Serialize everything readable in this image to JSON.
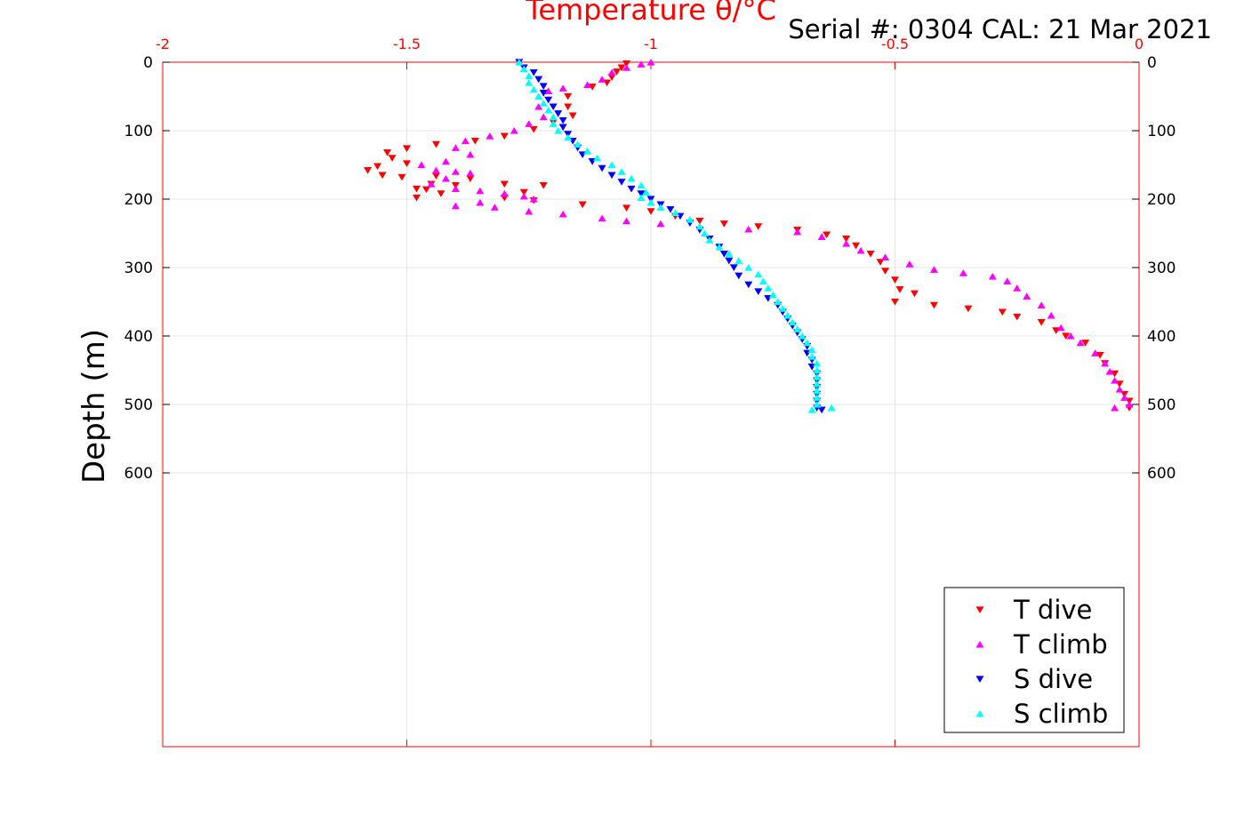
{
  "chart_data": {
    "type": "scatter",
    "title": "Temperature θ/°C",
    "subtitle": "Serial #: 0304  CAL: 21 Mar 2021",
    "xlabel": "Temperature θ/°C",
    "ylabel": "Depth (m)",
    "xlim": [
      -2,
      0
    ],
    "ylim": [
      0,
      1000
    ],
    "y_reversed": true,
    "x_axis_position": "top",
    "x_ticks": [
      -2,
      -1.5,
      -1,
      -0.5,
      0
    ],
    "x_tick_labels": [
      "-2",
      "-1.5",
      "-1",
      "-0.5",
      "0"
    ],
    "y_ticks": [
      0,
      100,
      200,
      300,
      400,
      500,
      600
    ],
    "y_tick_labels": [
      "0",
      "100",
      "200",
      "300",
      "400",
      "500",
      "600"
    ],
    "grid": true,
    "legend_position": "bottom-right",
    "axis_color": "#ff0000",
    "series": [
      {
        "name": "T dive",
        "marker": "triangle-down",
        "color": "#ff0000",
        "points": [
          [
            -1.05,
            2
          ],
          [
            -1.06,
            8
          ],
          [
            -1.07,
            14
          ],
          [
            -1.08,
            22
          ],
          [
            -1.09,
            30
          ],
          [
            -1.12,
            36
          ],
          [
            -1.17,
            50
          ],
          [
            -1.17,
            65
          ],
          [
            -1.16,
            78
          ],
          [
            -1.2,
            88
          ],
          [
            -1.24,
            98
          ],
          [
            -1.3,
            108
          ],
          [
            -1.36,
            115
          ],
          [
            -1.44,
            120
          ],
          [
            -1.5,
            126
          ],
          [
            -1.54,
            132
          ],
          [
            -1.53,
            140
          ],
          [
            -1.5,
            148
          ],
          [
            -1.56,
            152
          ],
          [
            -1.58,
            158
          ],
          [
            -1.55,
            165
          ],
          [
            -1.51,
            168
          ],
          [
            -1.44,
            166
          ],
          [
            -1.37,
            170
          ],
          [
            -1.45,
            178
          ],
          [
            -1.48,
            185
          ],
          [
            -1.43,
            192
          ],
          [
            -1.48,
            198
          ],
          [
            -1.46,
            186
          ],
          [
            -1.4,
            180
          ],
          [
            -1.3,
            178
          ],
          [
            -1.22,
            180
          ],
          [
            -1.26,
            190
          ],
          [
            -1.3,
            198
          ],
          [
            -1.24,
            202
          ],
          [
            -1.14,
            208
          ],
          [
            -1.05,
            213
          ],
          [
            -1.0,
            218
          ],
          [
            -0.95,
            225
          ],
          [
            -0.9,
            232
          ],
          [
            -0.85,
            236
          ],
          [
            -0.78,
            240
          ],
          [
            -0.7,
            245
          ],
          [
            -0.64,
            252
          ],
          [
            -0.6,
            258
          ],
          [
            -0.58,
            268
          ],
          [
            -0.55,
            280
          ],
          [
            -0.53,
            292
          ],
          [
            -0.52,
            305
          ],
          [
            -0.5,
            318
          ],
          [
            -0.49,
            332
          ],
          [
            -0.46,
            338
          ],
          [
            -0.5,
            350
          ],
          [
            -0.42,
            355
          ],
          [
            -0.35,
            360
          ],
          [
            -0.28,
            365
          ],
          [
            -0.25,
            372
          ],
          [
            -0.2,
            380
          ],
          [
            -0.17,
            392
          ],
          [
            -0.15,
            400
          ],
          [
            -0.11,
            410
          ],
          [
            -0.08,
            428
          ],
          [
            -0.07,
            440
          ],
          [
            -0.05,
            455
          ],
          [
            -0.04,
            470
          ],
          [
            -0.03,
            485
          ],
          [
            -0.02,
            495
          ],
          [
            -0.02,
            505
          ]
        ]
      },
      {
        "name": "T climb",
        "marker": "triangle-up",
        "color": "#ff00ff",
        "points": [
          [
            -1.0,
            0
          ],
          [
            -1.02,
            3
          ],
          [
            -1.05,
            8
          ],
          [
            -1.08,
            15
          ],
          [
            -1.1,
            25
          ],
          [
            -1.13,
            33
          ],
          [
            -1.18,
            38
          ],
          [
            -1.21,
            42
          ],
          [
            -1.23,
            50
          ],
          [
            -1.23,
            65
          ],
          [
            -1.22,
            80
          ],
          [
            -1.25,
            90
          ],
          [
            -1.28,
            100
          ],
          [
            -1.33,
            108
          ],
          [
            -1.38,
            115
          ],
          [
            -1.4,
            125
          ],
          [
            -1.37,
            135
          ],
          [
            -1.42,
            145
          ],
          [
            -1.47,
            150
          ],
          [
            -1.44,
            158
          ],
          [
            -1.4,
            160
          ],
          [
            -1.37,
            162
          ],
          [
            -1.42,
            170
          ],
          [
            -1.45,
            178
          ],
          [
            -1.4,
            185
          ],
          [
            -1.35,
            188
          ],
          [
            -1.3,
            192
          ],
          [
            -1.26,
            196
          ],
          [
            -1.24,
            200
          ],
          [
            -1.35,
            205
          ],
          [
            -1.4,
            210
          ],
          [
            -1.32,
            212
          ],
          [
            -1.25,
            218
          ],
          [
            -1.18,
            222
          ],
          [
            -1.1,
            228
          ],
          [
            -1.05,
            232
          ],
          [
            -0.98,
            236
          ],
          [
            -0.9,
            240
          ],
          [
            -0.8,
            244
          ],
          [
            -0.7,
            248
          ],
          [
            -0.65,
            255
          ],
          [
            -0.6,
            265
          ],
          [
            -0.57,
            275
          ],
          [
            -0.52,
            285
          ],
          [
            -0.47,
            295
          ],
          [
            -0.42,
            303
          ],
          [
            -0.36,
            308
          ],
          [
            -0.3,
            313
          ],
          [
            -0.27,
            320
          ],
          [
            -0.25,
            330
          ],
          [
            -0.23,
            342
          ],
          [
            -0.2,
            355
          ],
          [
            -0.18,
            370
          ],
          [
            -0.16,
            388
          ],
          [
            -0.14,
            400
          ],
          [
            -0.12,
            410
          ],
          [
            -0.09,
            425
          ],
          [
            -0.07,
            440
          ],
          [
            -0.06,
            452
          ],
          [
            -0.05,
            465
          ],
          [
            -0.04,
            478
          ],
          [
            -0.03,
            490
          ],
          [
            -0.02,
            500
          ],
          [
            -0.05,
            505
          ]
        ]
      },
      {
        "name": "S dive",
        "marker": "triangle-down",
        "color": "#0000ff",
        "points": [
          [
            -1.27,
            0
          ],
          [
            -1.26,
            8
          ],
          [
            -1.24,
            15
          ],
          [
            -1.23,
            25
          ],
          [
            -1.22,
            35
          ],
          [
            -1.22,
            45
          ],
          [
            -1.21,
            55
          ],
          [
            -1.2,
            65
          ],
          [
            -1.19,
            75
          ],
          [
            -1.18,
            85
          ],
          [
            -1.18,
            95
          ],
          [
            -1.17,
            105
          ],
          [
            -1.16,
            115
          ],
          [
            -1.15,
            125
          ],
          [
            -1.14,
            135
          ],
          [
            -1.12,
            145
          ],
          [
            -1.1,
            155
          ],
          [
            -1.08,
            165
          ],
          [
            -1.06,
            175
          ],
          [
            -1.04,
            185
          ],
          [
            -1.02,
            192
          ],
          [
            -1.0,
            200
          ],
          [
            -0.98,
            208
          ],
          [
            -0.96,
            215
          ],
          [
            -0.94,
            225
          ],
          [
            -0.92,
            235
          ],
          [
            -0.9,
            245
          ],
          [
            -0.88,
            258
          ],
          [
            -0.86,
            270
          ],
          [
            -0.85,
            280
          ],
          [
            -0.84,
            290
          ],
          [
            -0.83,
            300
          ],
          [
            -0.82,
            312
          ],
          [
            -0.8,
            325
          ],
          [
            -0.78,
            335
          ],
          [
            -0.76,
            345
          ],
          [
            -0.74,
            355
          ],
          [
            -0.73,
            365
          ],
          [
            -0.72,
            375
          ],
          [
            -0.71,
            385
          ],
          [
            -0.7,
            395
          ],
          [
            -0.69,
            405
          ],
          [
            -0.68,
            415
          ],
          [
            -0.68,
            425
          ],
          [
            -0.67,
            435
          ],
          [
            -0.67,
            445
          ],
          [
            -0.66,
            455
          ],
          [
            -0.66,
            465
          ],
          [
            -0.66,
            475
          ],
          [
            -0.66,
            485
          ],
          [
            -0.66,
            495
          ],
          [
            -0.66,
            505
          ],
          [
            -0.65,
            508
          ]
        ]
      },
      {
        "name": "S climb",
        "marker": "triangle-up",
        "color": "#00ffff",
        "points": [
          [
            -1.27,
            0
          ],
          [
            -1.26,
            10
          ],
          [
            -1.25,
            20
          ],
          [
            -1.25,
            30
          ],
          [
            -1.24,
            40
          ],
          [
            -1.23,
            50
          ],
          [
            -1.22,
            60
          ],
          [
            -1.21,
            70
          ],
          [
            -1.2,
            80
          ],
          [
            -1.2,
            90
          ],
          [
            -1.19,
            100
          ],
          [
            -1.17,
            110
          ],
          [
            -1.15,
            120
          ],
          [
            -1.13,
            130
          ],
          [
            -1.11,
            140
          ],
          [
            -1.08,
            150
          ],
          [
            -1.06,
            160
          ],
          [
            -1.04,
            170
          ],
          [
            -1.02,
            180
          ],
          [
            -1.01,
            190
          ],
          [
            -1.02,
            198
          ],
          [
            -1.0,
            205
          ],
          [
            -0.98,
            212
          ],
          [
            -0.95,
            220
          ],
          [
            -0.92,
            230
          ],
          [
            -0.9,
            240
          ],
          [
            -0.89,
            250
          ],
          [
            -0.88,
            260
          ],
          [
            -0.86,
            270
          ],
          [
            -0.84,
            280
          ],
          [
            -0.82,
            290
          ],
          [
            -0.8,
            300
          ],
          [
            -0.78,
            310
          ],
          [
            -0.77,
            320
          ],
          [
            -0.76,
            330
          ],
          [
            -0.75,
            340
          ],
          [
            -0.74,
            350
          ],
          [
            -0.73,
            360
          ],
          [
            -0.72,
            370
          ],
          [
            -0.71,
            380
          ],
          [
            -0.7,
            390
          ],
          [
            -0.69,
            400
          ],
          [
            -0.68,
            410
          ],
          [
            -0.67,
            420
          ],
          [
            -0.67,
            430
          ],
          [
            -0.66,
            440
          ],
          [
            -0.66,
            450
          ],
          [
            -0.66,
            460
          ],
          [
            -0.66,
            470
          ],
          [
            -0.66,
            480
          ],
          [
            -0.66,
            490
          ],
          [
            -0.66,
            500
          ],
          [
            -0.63,
            505
          ],
          [
            -0.67,
            508
          ]
        ]
      }
    ]
  }
}
